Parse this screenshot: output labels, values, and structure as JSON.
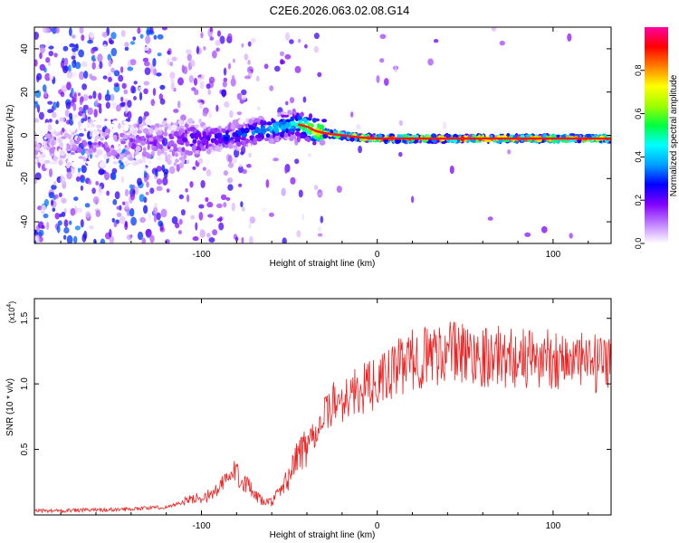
{
  "title": "C2E6.2026.063.02.08.G14",
  "chart_data": [
    {
      "type": "heatmap",
      "title": "C2E6.2026.063.02.08.G14",
      "xlabel": "Height of straight line (km)",
      "ylabel": "Frequency (Hz)",
      "xlim": [
        -195,
        133
      ],
      "ylim": [
        -50,
        50
      ],
      "x_ticks": [
        -100,
        0,
        100
      ],
      "y_ticks": [
        -40,
        -20,
        0,
        20,
        40
      ],
      "colorbar": {
        "label": "Normalized spectral amplitude",
        "range": [
          0.0,
          1.0
        ],
        "ticks": [
          0.0,
          0.2,
          0.4,
          0.6,
          0.8
        ],
        "colors": [
          "#ffffff",
          "#c080ff",
          "#8000ff",
          "#0000ff",
          "#00a0ff",
          "#00ffff",
          "#00ff40",
          "#a0ff00",
          "#ffff00",
          "#ff8000",
          "#ff0000",
          "#ff00a0"
        ]
      },
      "ridge": {
        "x": [
          -195,
          -160,
          -120,
          -100,
          -80,
          -60,
          -50,
          -45,
          -40,
          -35,
          -30,
          -20,
          -10,
          0,
          10,
          20,
          40,
          60,
          80,
          100,
          133
        ],
        "frequency_hz": [
          -5,
          -4,
          -3,
          -2,
          0,
          3,
          5,
          5,
          4,
          2,
          1,
          0,
          -1,
          -1.5,
          -1.5,
          -1.5,
          -1.5,
          -1.5,
          -1.5,
          -1.5,
          -1.5
        ],
        "amplitude": [
          0.12,
          0.15,
          0.2,
          0.28,
          0.35,
          0.45,
          0.5,
          0.55,
          0.7,
          0.8,
          0.85,
          0.9,
          0.9,
          0.92,
          0.93,
          0.95,
          0.96,
          0.96,
          0.96,
          0.96,
          0.96
        ]
      }
    },
    {
      "type": "line",
      "xlabel": "Height of straight line (km)",
      "ylabel": "SNR (10 * v/v)",
      "y_scale_label": "(x10",
      "y_scale_exponent": "4",
      "xlim": [
        -195,
        133
      ],
      "ylim": [
        0,
        1.65
      ],
      "x_ticks": [
        -100,
        0,
        100
      ],
      "y_ticks": [
        0.5,
        1.0,
        1.5
      ],
      "y_tick_labels": [
        "0.5",
        "1.0",
        "1.5"
      ],
      "series": [
        {
          "name": "SNR",
          "color": "#ee2222",
          "x": [
            -195,
            -150,
            -120,
            -105,
            -95,
            -90,
            -85,
            -80,
            -78,
            -75,
            -70,
            -65,
            -60,
            -55,
            -50,
            -45,
            -40,
            -35,
            -30,
            -25,
            -20,
            -15,
            -10,
            -5,
            0,
            5,
            10,
            15,
            20,
            25,
            30,
            40,
            50,
            60,
            65,
            70,
            80,
            90,
            100,
            110,
            120,
            125,
            130,
            133
          ],
          "y": [
            0.03,
            0.04,
            0.06,
            0.12,
            0.15,
            0.2,
            0.28,
            0.33,
            0.3,
            0.25,
            0.15,
            0.1,
            0.1,
            0.18,
            0.3,
            0.45,
            0.55,
            0.65,
            0.75,
            0.85,
            0.88,
            0.92,
            0.95,
            0.98,
            1.0,
            1.05,
            1.1,
            1.15,
            1.18,
            1.2,
            1.22,
            1.25,
            1.23,
            1.22,
            1.2,
            1.21,
            1.2,
            1.18,
            1.2,
            1.18,
            1.15,
            1.15,
            1.1,
            1.15
          ]
        }
      ]
    }
  ]
}
